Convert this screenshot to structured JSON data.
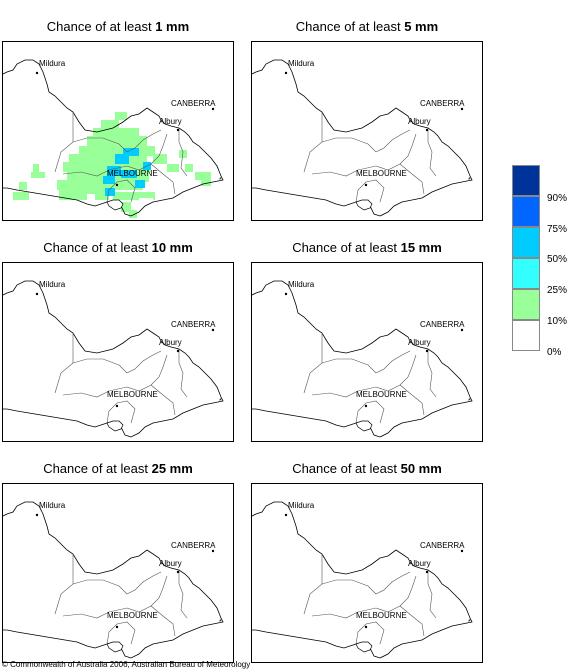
{
  "panels": [
    {
      "prefix": "Chance of at least",
      "amount": "1 mm",
      "has_rain": true
    },
    {
      "prefix": "Chance of at least",
      "amount": "5 mm",
      "has_rain": false
    },
    {
      "prefix": "Chance of at least",
      "amount": "10 mm",
      "has_rain": false
    },
    {
      "prefix": "Chance of at least",
      "amount": "15 mm",
      "has_rain": false
    },
    {
      "prefix": "Chance of at least",
      "amount": "25 mm",
      "has_rain": false
    },
    {
      "prefix": "Chance of at least",
      "amount": "50 mm",
      "has_rain": false
    }
  ],
  "places": {
    "mildura": "Mildura",
    "canberra": "CANBERRA",
    "albury": "Albury",
    "melbourne": "MELBOURNE"
  },
  "legend": {
    "colors": [
      "#003399",
      "#0066ff",
      "#00ccff",
      "#33ffff",
      "#99ff99",
      "#ffffff"
    ],
    "labels": [
      "90%",
      "75%",
      "50%",
      "25%",
      "10%",
      "0%"
    ]
  },
  "copyright": "© Commonwealth of Australia 2006, Australian Bureau of Meteorology"
}
